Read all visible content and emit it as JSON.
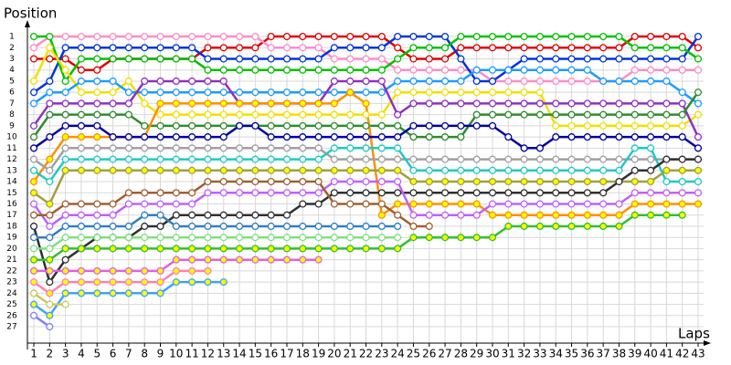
{
  "chart_data": {
    "type": "line",
    "x_label": "Laps",
    "y_label": "Position",
    "x": [
      1,
      2,
      3,
      4,
      5,
      6,
      7,
      8,
      9,
      10,
      11,
      12,
      13,
      14,
      15,
      16,
      17,
      18,
      19,
      20,
      21,
      22,
      23,
      24,
      25,
      26,
      27,
      28,
      29,
      30,
      31,
      32,
      33,
      34,
      35,
      36,
      37,
      38,
      39,
      40,
      41,
      42,
      43
    ],
    "xlim": [
      0.6,
      43.6
    ],
    "xticks": [
      1,
      2,
      3,
      4,
      5,
      6,
      7,
      8,
      9,
      10,
      11,
      12,
      13,
      14,
      15,
      16,
      17,
      18,
      19,
      20,
      21,
      22,
      23,
      24,
      25,
      26,
      27,
      28,
      29,
      30,
      31,
      32,
      33,
      34,
      35,
      36,
      37,
      38,
      39,
      40,
      41,
      42,
      43
    ],
    "ylim": [
      29,
      0
    ],
    "yticks": [
      1,
      2,
      3,
      4,
      5,
      6,
      7,
      8,
      9,
      10,
      11,
      12,
      13,
      14,
      15,
      16,
      17,
      18,
      19,
      20,
      21,
      22,
      23,
      24,
      25,
      26,
      27
    ],
    "grid": true,
    "series": [
      {
        "color": "#e00000",
        "marker_fill": "#ffffff",
        "values": [
          3,
          3,
          3,
          4,
          4,
          3,
          3,
          3,
          3,
          3,
          3,
          2,
          2,
          2,
          2,
          1,
          1,
          1,
          1,
          1,
          1,
          1,
          1,
          2,
          3,
          3,
          3,
          2,
          2,
          2,
          2,
          2,
          2,
          2,
          2,
          2,
          2,
          2,
          1,
          1,
          1,
          1,
          2
        ]
      },
      {
        "color": "#ff8cc6",
        "marker_fill": "#ffffff",
        "values": [
          2,
          1,
          1,
          1,
          1,
          1,
          1,
          1,
          1,
          1,
          1,
          1,
          1,
          1,
          1,
          2,
          2,
          2,
          2,
          3,
          3,
          3,
          3,
          4,
          4,
          4,
          4,
          4,
          4,
          5,
          5,
          5,
          5,
          5,
          5,
          5,
          5,
          5,
          4,
          4,
          4,
          4,
          4
        ]
      },
      {
        "color": "#0033dd",
        "marker_fill": "#ffffff",
        "values": [
          6,
          5,
          2,
          2,
          2,
          2,
          2,
          2,
          2,
          2,
          2,
          3,
          3,
          3,
          3,
          3,
          3,
          3,
          3,
          2,
          2,
          2,
          2,
          1,
          1,
          1,
          1,
          3,
          5,
          5,
          4,
          3,
          3,
          3,
          3,
          3,
          3,
          3,
          3,
          3,
          3,
          3,
          1
        ]
      },
      {
        "color": "#00c000",
        "marker_fill": "#ffffff",
        "values": [
          1,
          1,
          5,
          3,
          3,
          3,
          3,
          3,
          3,
          3,
          3,
          4,
          4,
          4,
          4,
          4,
          4,
          4,
          4,
          4,
          4,
          4,
          4,
          3,
          2,
          2,
          2,
          1,
          1,
          1,
          1,
          1,
          1,
          1,
          1,
          1,
          1,
          1,
          2,
          2,
          2,
          2,
          3
        ]
      },
      {
        "color": "#f0e000",
        "marker_fill": "#ffffff",
        "values": [
          5,
          2,
          4,
          6,
          6,
          6,
          5,
          7,
          8,
          8,
          8,
          8,
          8,
          8,
          8,
          8,
          8,
          8,
          8,
          8,
          8,
          8,
          8,
          6,
          6,
          6,
          6,
          6,
          6,
          6,
          6,
          6,
          6,
          9,
          9,
          9,
          9,
          9,
          9,
          9,
          9,
          9,
          8
        ]
      },
      {
        "color": "#1e9bff",
        "marker_fill": "#ffffff",
        "values": [
          7,
          6,
          6,
          5,
          5,
          5,
          6,
          6,
          6,
          6,
          6,
          6,
          6,
          6,
          6,
          6,
          6,
          6,
          6,
          6,
          6,
          6,
          6,
          5,
          5,
          5,
          5,
          5,
          4,
          4,
          4,
          4,
          4,
          4,
          4,
          4,
          5,
          5,
          5,
          5,
          5,
          6,
          7
        ]
      },
      {
        "color": "#9030c0",
        "marker_fill": "#ffffff",
        "values": [
          9,
          7,
          7,
          7,
          7,
          7,
          7,
          5,
          5,
          5,
          5,
          5,
          5,
          7,
          7,
          7,
          7,
          7,
          7,
          5,
          5,
          5,
          5,
          8,
          7,
          7,
          7,
          7,
          7,
          7,
          7,
          7,
          7,
          7,
          7,
          7,
          7,
          7,
          7,
          7,
          7,
          7,
          10
        ]
      },
      {
        "color": "#2e8b2e",
        "marker_fill": "#ffffff",
        "values": [
          10,
          8,
          8,
          8,
          8,
          8,
          8,
          9,
          9,
          9,
          9,
          9,
          9,
          9,
          9,
          9,
          9,
          9,
          9,
          9,
          9,
          9,
          9,
          9,
          10,
          10,
          10,
          10,
          8,
          8,
          8,
          8,
          8,
          8,
          8,
          8,
          8,
          8,
          8,
          8,
          8,
          8,
          6
        ]
      },
      {
        "color": "#ff9000",
        "marker_fill": "#ffff00",
        "values": [
          14,
          12,
          10,
          10,
          10,
          10,
          10,
          10,
          7,
          7,
          7,
          7,
          7,
          7,
          7,
          7,
          7,
          7,
          7,
          7,
          6,
          7,
          17,
          16,
          16,
          16,
          16,
          16,
          16,
          17,
          17,
          17,
          17,
          17,
          17,
          17,
          17,
          17,
          16,
          16,
          16,
          16,
          16
        ]
      },
      {
        "color": "#0000a0",
        "marker_fill": "#ffffff",
        "values": [
          11,
          10,
          9,
          9,
          9,
          10,
          10,
          10,
          10,
          10,
          10,
          10,
          10,
          9,
          9,
          10,
          10,
          10,
          10,
          10,
          10,
          10,
          10,
          10,
          9,
          9,
          9,
          9,
          9,
          9,
          10,
          11,
          11,
          10,
          10,
          10,
          10,
          10,
          10,
          10,
          10,
          10,
          11
        ]
      },
      {
        "color": "#a0a0a0",
        "marker_fill": "#ffffff",
        "values": [
          12,
          13,
          11,
          11,
          11,
          11,
          11,
          11,
          11,
          11,
          11,
          11,
          11,
          11,
          11,
          11,
          11,
          11,
          11,
          12,
          12,
          12,
          12,
          12,
          12,
          12,
          12,
          12,
          12,
          12,
          12,
          12,
          12,
          12,
          12,
          12,
          12,
          12,
          12,
          12,
          12,
          12,
          12
        ]
      },
      {
        "color": "#20c8c8",
        "marker_fill": "#ffffff",
        "values": [
          13,
          14,
          12,
          12,
          12,
          12,
          12,
          12,
          12,
          12,
          12,
          12,
          12,
          12,
          12,
          12,
          12,
          12,
          12,
          11,
          11,
          11,
          11,
          11,
          13,
          13,
          13,
          13,
          13,
          13,
          13,
          13,
          13,
          13,
          13,
          13,
          13,
          13,
          11,
          11,
          14,
          14,
          14
        ]
      },
      {
        "color": "#a0a040",
        "marker_fill": "#ffff00",
        "values": [
          15,
          16,
          13,
          13,
          13,
          13,
          13,
          13,
          13,
          13,
          13,
          13,
          13,
          13,
          13,
          13,
          13,
          13,
          13,
          13,
          13,
          13,
          13,
          13,
          14,
          14,
          14,
          14,
          14,
          14,
          14,
          14,
          14,
          14,
          14,
          14,
          14,
          14,
          14,
          14,
          13,
          13,
          13
        ]
      },
      {
        "color": "#303030",
        "marker_fill": "#ffffff",
        "values": [
          18,
          23,
          21,
          20,
          19,
          19,
          19,
          18,
          18,
          17,
          17,
          17,
          17,
          17,
          17,
          17,
          17,
          16,
          16,
          15,
          15,
          15,
          15,
          15,
          15,
          15,
          15,
          15,
          15,
          15,
          15,
          15,
          15,
          15,
          15,
          15,
          15,
          14,
          13,
          13,
          12,
          12,
          12
        ]
      },
      {
        "color": "#c060ff",
        "marker_fill": "#ffffff",
        "values": [
          16,
          18,
          17,
          17,
          17,
          17,
          16,
          16,
          16,
          16,
          16,
          15,
          15,
          15,
          15,
          15,
          15,
          15,
          15,
          14,
          14,
          14,
          14,
          14,
          17,
          17,
          17,
          17,
          17,
          16,
          16,
          16,
          16,
          16,
          16,
          16,
          16,
          16,
          15,
          15,
          15,
          15,
          15
        ]
      },
      {
        "color": "#a06030",
        "marker_fill": "#ffffff",
        "values": [
          17,
          17,
          16,
          16,
          16,
          16,
          15,
          15,
          15,
          15,
          15,
          14,
          14,
          14,
          14,
          14,
          14,
          14,
          14,
          16,
          16,
          16,
          16,
          17,
          18,
          18,
          null,
          null,
          null,
          null,
          null,
          null,
          null,
          null,
          null,
          null,
          null,
          null,
          null,
          null,
          null,
          null,
          null
        ]
      },
      {
        "color": "#3080c0",
        "marker_fill": "#ffffff",
        "values": [
          19,
          19,
          18,
          18,
          18,
          18,
          18,
          17,
          17,
          18,
          18,
          18,
          18,
          18,
          18,
          18,
          18,
          18,
          18,
          18,
          18,
          18,
          18,
          18,
          null,
          null,
          null,
          null,
          null,
          null,
          null,
          null,
          null,
          null,
          null,
          null,
          null,
          null,
          null,
          null,
          null,
          null,
          null
        ]
      },
      {
        "color": "#80e080",
        "marker_fill": "#ffffff",
        "values": [
          20,
          20,
          19,
          19,
          19,
          19,
          19,
          19,
          19,
          19,
          19,
          19,
          19,
          19,
          19,
          19,
          19,
          19,
          19,
          19,
          19,
          19,
          19,
          19,
          null,
          null,
          null,
          null,
          null,
          null,
          null,
          null,
          null,
          null,
          null,
          null,
          null,
          null,
          null,
          null,
          null,
          null,
          null
        ]
      },
      {
        "color": "#30c030",
        "marker_fill": "#ffff00",
        "values": [
          21,
          21,
          20,
          20,
          20,
          20,
          20,
          20,
          20,
          20,
          20,
          20,
          20,
          20,
          20,
          20,
          20,
          20,
          20,
          20,
          20,
          20,
          20,
          20,
          19,
          19,
          19,
          19,
          19,
          19,
          18,
          18,
          18,
          18,
          18,
          18,
          18,
          18,
          17,
          17,
          17,
          17,
          null
        ]
      },
      {
        "color": "#e060e0",
        "marker_fill": "#ffff00",
        "values": [
          22,
          22,
          22,
          22,
          22,
          22,
          22,
          22,
          22,
          21,
          21,
          21,
          21,
          21,
          21,
          21,
          21,
          21,
          21,
          null,
          null,
          null,
          null,
          null,
          null,
          null,
          null,
          null,
          null,
          null,
          null,
          null,
          null,
          null,
          null,
          null,
          null,
          null,
          null,
          null,
          null,
          null,
          null
        ]
      },
      {
        "color": "#ff80b0",
        "marker_fill": "#ffff00",
        "values": [
          23,
          24,
          23,
          23,
          23,
          23,
          23,
          23,
          23,
          22,
          22,
          22,
          null,
          null,
          null,
          null,
          null,
          null,
          null,
          null,
          null,
          null,
          null,
          null,
          null,
          null,
          null,
          null,
          null,
          null,
          null,
          null,
          null,
          null,
          null,
          null,
          null,
          null,
          null,
          null,
          null,
          null,
          null
        ]
      },
      {
        "color": "#40a0ff",
        "marker_fill": "#ffff00",
        "values": [
          25,
          26,
          24,
          24,
          24,
          24,
          24,
          24,
          24,
          23,
          23,
          23,
          23,
          null,
          null,
          null,
          null,
          null,
          null,
          null,
          null,
          null,
          null,
          null,
          null,
          null,
          null,
          null,
          null,
          null,
          null,
          null,
          null,
          null,
          null,
          null,
          null,
          null,
          null,
          null,
          null,
          null,
          null
        ]
      },
      {
        "color": "#c8c860",
        "marker_fill": "#ffffff",
        "values": [
          24,
          25,
          25,
          null,
          null,
          null,
          null,
          null,
          null,
          null,
          null,
          null,
          null,
          null,
          null,
          null,
          null,
          null,
          null,
          null,
          null,
          null,
          null,
          null,
          null,
          null,
          null,
          null,
          null,
          null,
          null,
          null,
          null,
          null,
          null,
          null,
          null,
          null,
          null,
          null,
          null,
          null,
          null
        ]
      },
      {
        "color": "#8080ff",
        "marker_fill": "#ffffff",
        "values": [
          26,
          27,
          null,
          null,
          null,
          null,
          null,
          null,
          null,
          null,
          null,
          null,
          null,
          null,
          null,
          null,
          null,
          null,
          null,
          null,
          null,
          null,
          null,
          null,
          null,
          null,
          null,
          null,
          null,
          null,
          null,
          null,
          null,
          null,
          null,
          null,
          null,
          null,
          null,
          null,
          null,
          null,
          null
        ]
      }
    ]
  }
}
